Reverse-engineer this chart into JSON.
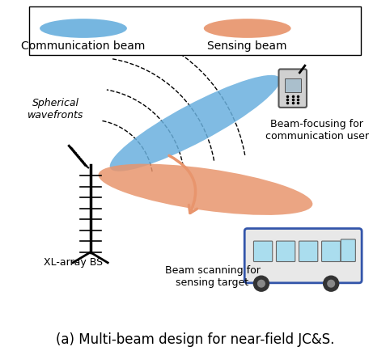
{
  "title": "(a) Multi-beam design for near-field JC&S.",
  "legend_labels": [
    "Communication beam",
    "Sensing beam"
  ],
  "comm_beam_color": "#6ab0de",
  "sensing_beam_color": "#e8956d",
  "background_color": "#ffffff",
  "text_color": "#000000",
  "label_spherical": "Spherical\nwavefronts",
  "label_bs": "XL-array BS",
  "label_comm": "Beam-focusing for\ncommunication user",
  "label_sensing": "Beam scanning for\nsensing target",
  "title_fontsize": 12,
  "label_fontsize": 10
}
